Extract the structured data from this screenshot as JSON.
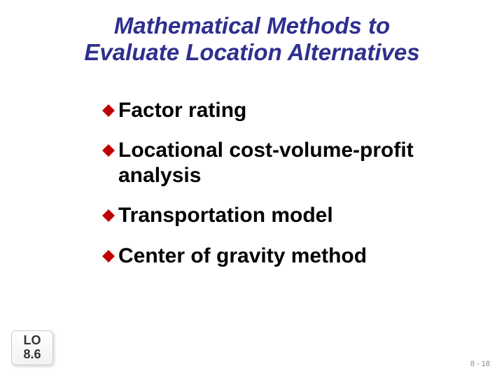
{
  "title": {
    "line1": "Mathematical Methods to",
    "line2": "Evaluate Location Alternatives",
    "color": "#2f2f8f",
    "fontsize": 33
  },
  "bullets": {
    "diamond_color": "#c00000",
    "diamond_size": 20,
    "text_color": "#000000",
    "fontsize": 30,
    "items": [
      {
        "text": "Factor rating"
      },
      {
        "text": "Locational cost-volume-profit analysis"
      },
      {
        "text": "Transportation model"
      },
      {
        "text": "Center of gravity method"
      }
    ]
  },
  "lo_box": {
    "line1": "LO",
    "line2": "8.6",
    "fontsize": 18
  },
  "page_number": {
    "text": "8 - 18",
    "color": "#8a8a8a",
    "fontsize": 11
  }
}
